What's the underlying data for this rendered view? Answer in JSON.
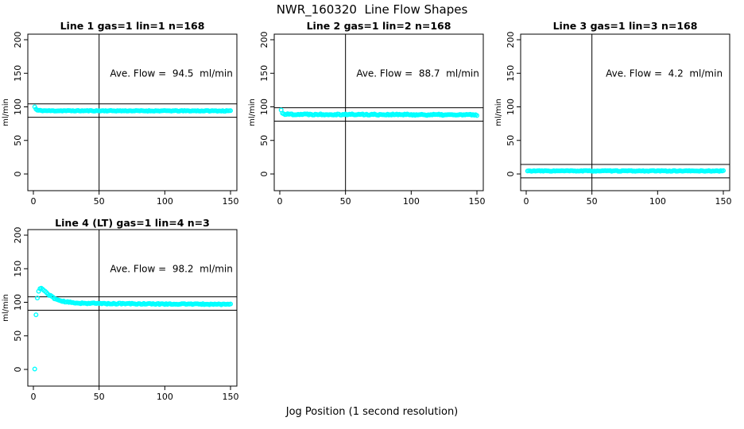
{
  "figure": {
    "title": "NWR_160320  Line Flow Shapes",
    "xlabel": "Jog Position (1 second resolution)",
    "background_color": "#FFFFFF",
    "point_color": "#00FFFF",
    "line_color": "#000000"
  },
  "chart_data": {
    "type": "scatter",
    "xlabel": "Jog Position (1 second resolution)",
    "ylabel": "ml/min",
    "x_ticks": [
      0,
      50,
      100,
      150
    ],
    "y_ticks": [
      0,
      50,
      100,
      150,
      200
    ],
    "xlim": [
      -4,
      155
    ],
    "ylim": [
      -25,
      208
    ],
    "grid": false,
    "legend": "none",
    "point_style": "open-circle",
    "point_color": "#00FFFF",
    "points_per_panel": 150,
    "annotation_pos": [
      105,
      150
    ],
    "panels": [
      {
        "title": "Line 1 gas=1 lin=1 n=168",
        "annotation": "Ave. Flow =  94.5  ml/min",
        "ave_flow": 94.5,
        "n": 168,
        "vline_x": 50,
        "hlines": [
          104.5,
          84.5
        ],
        "noise": 0.55,
        "seed": 11,
        "profile": [
          [
            1,
            100
          ],
          [
            2,
            96.5
          ],
          [
            3,
            94.8
          ],
          [
            10,
            94.2
          ],
          [
            150,
            94
          ]
        ]
      },
      {
        "title": "Line 2 gas=1 lin=2 n=168",
        "annotation": "Ave. Flow =  88.7  ml/min",
        "ave_flow": 88.7,
        "n": 168,
        "vline_x": 50,
        "hlines": [
          98.7,
          78.7
        ],
        "noise": 1.0,
        "seed": 22,
        "profile": [
          [
            1,
            95
          ],
          [
            2,
            91
          ],
          [
            4,
            89
          ],
          [
            80,
            88.5
          ],
          [
            150,
            88
          ]
        ]
      },
      {
        "title": "Line 3 gas=1 lin=3 n=168",
        "annotation": "Ave. Flow =  4.2  ml/min",
        "ave_flow": 4.2,
        "n": 168,
        "vline_x": 50,
        "hlines": [
          14.2,
          -5.8
        ],
        "noise": 0.55,
        "seed": 33,
        "profile": [
          [
            1,
            4.5
          ],
          [
            150,
            4.5
          ]
        ]
      },
      {
        "title": "Line 4 (LT) gas=1 lin=4 n=3",
        "annotation": "Ave. Flow =  98.2  ml/min",
        "ave_flow": 98.2,
        "n": 3,
        "vline_x": 50,
        "hlines": [
          108.2,
          88.2
        ],
        "noise": 0.8,
        "seed": 44,
        "profile": [
          [
            1,
            0
          ],
          [
            2,
            82
          ],
          [
            3,
            107
          ],
          [
            4,
            116
          ],
          [
            5,
            120
          ],
          [
            6,
            121
          ],
          [
            8,
            118
          ],
          [
            10,
            114
          ],
          [
            12,
            111
          ],
          [
            15,
            107
          ],
          [
            18,
            104
          ],
          [
            22,
            101.5
          ],
          [
            27,
            100
          ],
          [
            33,
            99
          ],
          [
            40,
            98.5
          ],
          [
            60,
            98
          ],
          [
            100,
            97.5
          ],
          [
            150,
            97
          ]
        ]
      }
    ]
  }
}
